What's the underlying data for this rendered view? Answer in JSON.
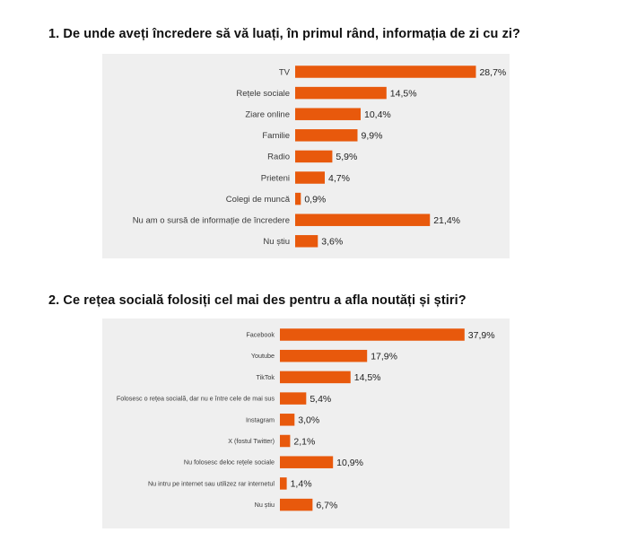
{
  "headings": {
    "q1": "1. De unde aveți încredere să vă luați, în primul rând, informația de zi cu zi?",
    "q2": "2. Ce rețea socială folosiți cel mai des pentru a afla noutăți și știri?"
  },
  "colors": {
    "bar": "#e8590c",
    "panel_bg": "#efefef"
  },
  "chart_data": [
    {
      "type": "bar",
      "orientation": "horizontal",
      "title": "1. De unde aveți încredere să vă luați, în primul rând, informația de zi cu zi?",
      "categories": [
        "TV",
        "Rețele sociale",
        "Ziare online",
        "Familie",
        "Radio",
        "Prieteni",
        "Colegi de muncă",
        "Nu am o sursă de informație de încredere",
        "Nu știu"
      ],
      "values": [
        28.7,
        14.5,
        10.4,
        9.9,
        5.9,
        4.7,
        0.9,
        21.4,
        3.6
      ],
      "labels": [
        "28,7%",
        "14,5%",
        "10,4%",
        "9,9%",
        "5,9%",
        "4,7%",
        "0,9%",
        "21,4%",
        "3,6%"
      ],
      "unit": "%",
      "grid": false,
      "legend": "none"
    },
    {
      "type": "bar",
      "orientation": "horizontal",
      "title": "2. Ce rețea socială folosiți cel mai des pentru a afla noutăți și știri?",
      "categories": [
        "Facebook",
        "Youtube",
        "TikTok",
        "Folosesc o rețea socială, dar nu e între cele de mai sus",
        "Instagram",
        "X (fostul Twitter)",
        "Nu folosesc deloc rețele sociale",
        "Nu intru pe internet sau utilizez rar internetul",
        "Nu știu"
      ],
      "values": [
        37.9,
        17.9,
        14.5,
        5.4,
        3.0,
        2.1,
        10.9,
        1.4,
        6.7
      ],
      "labels": [
        "37,9%",
        "17,9%",
        "14,5%",
        "5,4%",
        "3,0%",
        "2,1%",
        "10,9%",
        "1,4%",
        "6,7%"
      ],
      "unit": "%",
      "grid": false,
      "legend": "none"
    }
  ]
}
